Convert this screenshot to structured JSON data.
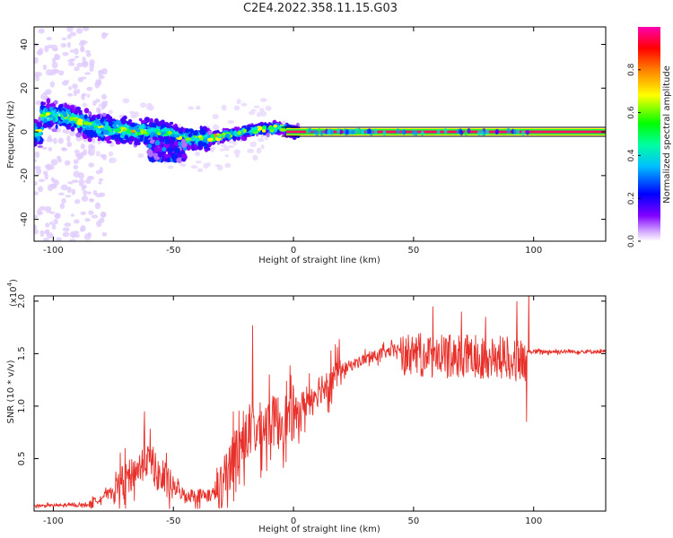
{
  "title": "C2E4.2022.358.11.15.G03",
  "chart_data": [
    {
      "type": "heatmap",
      "name": "spectrogram",
      "xlabel": "Height of straight line (km)",
      "ylabel": "Frequency (Hz)",
      "xlim": [
        -108,
        130
      ],
      "ylim": [
        -50,
        48
      ],
      "xticks": [
        -100,
        -50,
        0,
        50,
        100
      ],
      "yticks": [
        -40,
        -20,
        0,
        20,
        40
      ],
      "colorbar": {
        "label": "Normalized spectral amplitude",
        "range": [
          0,
          1
        ],
        "ticks": [
          0.0,
          0.2,
          0.4,
          0.6,
          0.8
        ],
        "colors": [
          "#ffffff",
          "#cc99ff",
          "#7a00ff",
          "#0000ff",
          "#00c8ff",
          "#00ff00",
          "#ffff00",
          "#ff8000",
          "#ff0000",
          "#ff00aa"
        ]
      },
      "ridge": {
        "description_points_km_hz": [
          [
            -105,
            8
          ],
          [
            -95,
            7
          ],
          [
            -85,
            3
          ],
          [
            -75,
            1
          ],
          [
            -65,
            0
          ],
          [
            -55,
            0
          ],
          [
            -45,
            -3
          ],
          [
            -35,
            -3
          ],
          [
            -25,
            -1
          ],
          [
            -15,
            1
          ],
          [
            -5,
            2
          ],
          [
            0,
            0
          ],
          [
            50,
            0
          ],
          [
            100,
            0
          ],
          [
            130,
            0
          ]
        ],
        "strong_line_start_km": 0
      }
    },
    {
      "type": "line",
      "name": "snr",
      "xlabel": "Height of straight line (km)",
      "ylabel": "SNR (10 * v/v)",
      "yexponent_label": "(x10",
      "yexponent_power": "4",
      "yexponent_close": ")",
      "xlim": [
        -108,
        130
      ],
      "ylim": [
        0,
        2.05
      ],
      "xticks": [
        -100,
        -50,
        0,
        50,
        100
      ],
      "yticks": [
        0.5,
        1.0,
        1.5,
        2.0
      ],
      "ytick_labels": [
        "0.5",
        "1.0",
        "1.5",
        "2.0"
      ],
      "color": "#e8302a",
      "envelope_km_value": [
        [
          -108,
          0.05
        ],
        [
          -85,
          0.06
        ],
        [
          -75,
          0.2
        ],
        [
          -65,
          0.4
        ],
        [
          -60,
          0.5
        ],
        [
          -55,
          0.3
        ],
        [
          -45,
          0.15
        ],
        [
          -35,
          0.15
        ],
        [
          -30,
          0.2
        ],
        [
          -25,
          0.55
        ],
        [
          -20,
          0.7
        ],
        [
          -10,
          0.85
        ],
        [
          0,
          0.9
        ],
        [
          10,
          1.15
        ],
        [
          20,
          1.35
        ],
        [
          30,
          1.45
        ],
        [
          40,
          1.52
        ],
        [
          50,
          1.58
        ],
        [
          60,
          1.55
        ],
        [
          70,
          1.57
        ],
        [
          80,
          1.55
        ],
        [
          90,
          1.55
        ],
        [
          95,
          1.5
        ],
        [
          100,
          1.52
        ],
        [
          130,
          1.52
        ]
      ],
      "spikes_km_value": [
        [
          -62,
          0.95
        ],
        [
          -17,
          1.77
        ],
        [
          -25,
          0.95
        ],
        [
          -10,
          1.3
        ],
        [
          58,
          1.95
        ],
        [
          70,
          1.9
        ],
        [
          80,
          1.85
        ],
        [
          93,
          2.0
        ],
        [
          97,
          0.85
        ],
        [
          98,
          2.1
        ]
      ]
    }
  ]
}
